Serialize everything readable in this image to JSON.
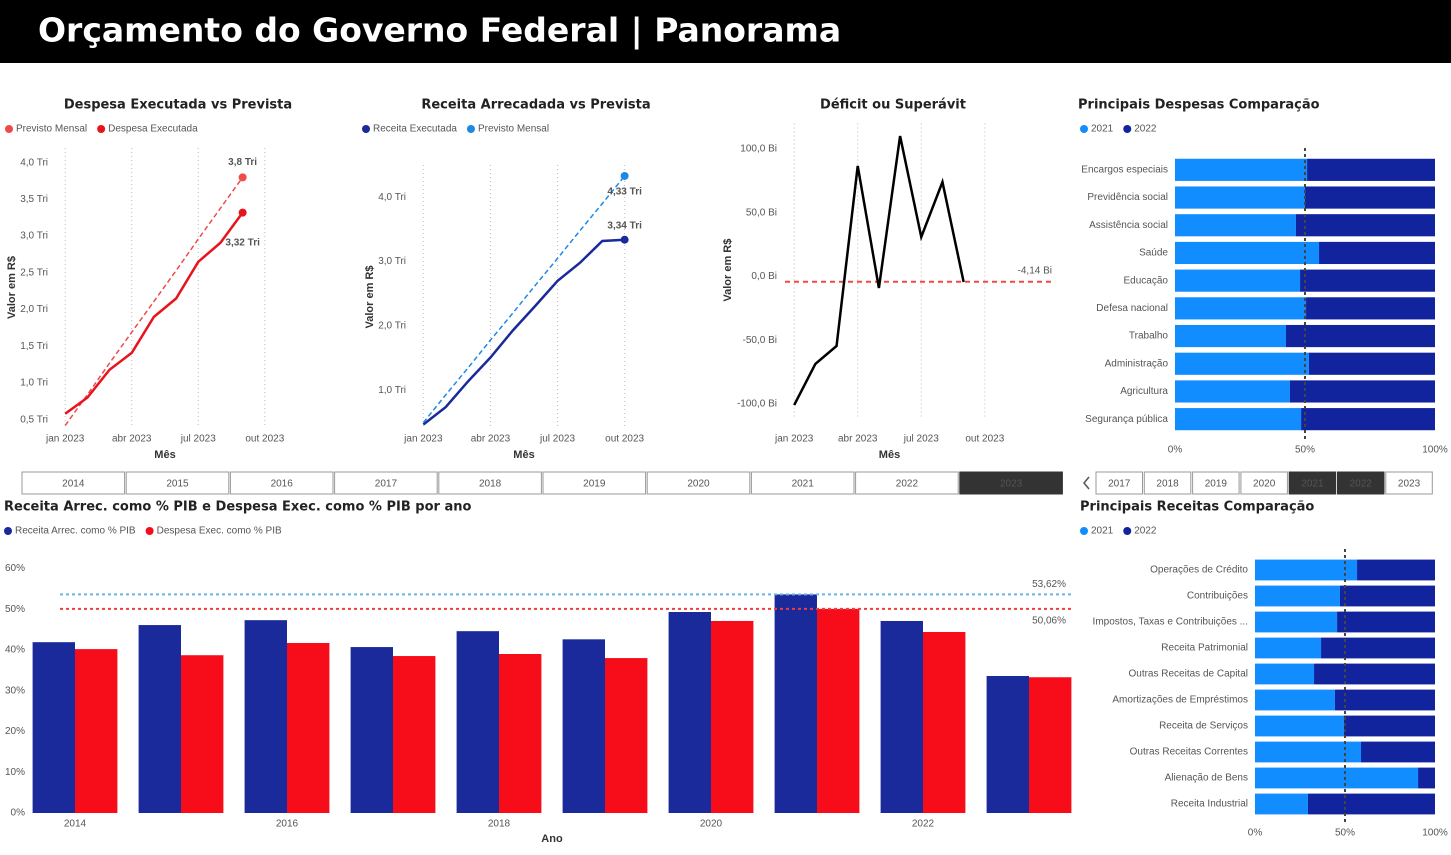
{
  "header": {
    "title": "Orçamento do Governo Federal | Panorama"
  },
  "chart_data": [
    {
      "type": "line",
      "title": "Despesa Executada vs Prevista",
      "x_label": "Mês",
      "y_label": "Valor em R$",
      "x": [
        "2023-01",
        "2023-02",
        "2023-03",
        "2023-04",
        "2023-05",
        "2023-06",
        "2023-07",
        "2023-08",
        "2023-09"
      ],
      "series": [
        {
          "name": "Previsto Mensal",
          "color": "#ee4b4b",
          "dashed": true,
          "values": [
            0.42,
            0.84,
            1.27,
            1.69,
            2.11,
            2.53,
            2.96,
            3.38,
            3.8
          ],
          "value_labels": [
            null,
            null,
            null,
            null,
            null,
            null,
            null,
            null,
            "3,8 Tri"
          ]
        },
        {
          "name": "Despesa Executada",
          "color": "#e8141c",
          "values": [
            0.58,
            0.8,
            1.18,
            1.41,
            1.9,
            2.15,
            2.65,
            2.91,
            3.32
          ],
          "value_labels": [
            null,
            null,
            null,
            null,
            null,
            null,
            null,
            null,
            "3,32 Tri"
          ]
        }
      ],
      "xlim": [
        "2022-12",
        "2023-11"
      ],
      "xticks": [
        {
          "value": "2023-01",
          "label": "jan 2023"
        },
        {
          "value": "2023-04",
          "label": "abr 2023"
        },
        {
          "value": "2023-07",
          "label": "jul 2023"
        },
        {
          "value": "2023-10",
          "label": "out 2023"
        }
      ],
      "ylim": [
        0.4,
        4.2
      ],
      "yticks": [
        {
          "value": 0.5,
          "label": "0,5 Tri"
        },
        {
          "value": 1.0,
          "label": "1,0 Tri"
        },
        {
          "value": 1.5,
          "label": "1,5 Tri"
        },
        {
          "value": 2.0,
          "label": "2,0 Tri"
        },
        {
          "value": 2.5,
          "label": "2,5 Tri"
        },
        {
          "value": 3.0,
          "label": "3,0 Tri"
        },
        {
          "value": 3.5,
          "label": "3,5 Tri"
        },
        {
          "value": 4.0,
          "label": "4,0 Tri"
        }
      ],
      "grid": "x"
    },
    {
      "type": "line",
      "title": "Receita Arrecadada vs Prevista",
      "x_label": "Mês",
      "y_label": "Valor em R$",
      "x": [
        "2023-01",
        "2023-02",
        "2023-03",
        "2023-04",
        "2023-05",
        "2023-06",
        "2023-07",
        "2023-08",
        "2023-09",
        "2023-10"
      ],
      "series": [
        {
          "name": "Receita Executada",
          "color": "#1a2a9a",
          "values": [
            0.47,
            0.74,
            1.14,
            1.51,
            1.93,
            2.31,
            2.7,
            2.98,
            3.32,
            3.34
          ],
          "value_labels": [
            null,
            null,
            null,
            null,
            null,
            null,
            null,
            null,
            null,
            "3,34 Tri"
          ]
        },
        {
          "name": "Previsto Mensal",
          "color": "#1e88e5",
          "dashed": true,
          "values": [
            0.5,
            0.93,
            1.35,
            1.78,
            2.2,
            2.63,
            3.05,
            3.48,
            3.9,
            4.33
          ],
          "value_labels": [
            null,
            null,
            null,
            null,
            null,
            null,
            null,
            null,
            null,
            "4,33 Tri"
          ]
        }
      ],
      "xlim": [
        "2022-12",
        "2023-11"
      ],
      "xticks": [
        {
          "value": "2023-01",
          "label": "jan 2023"
        },
        {
          "value": "2023-04",
          "label": "abr 2023"
        },
        {
          "value": "2023-07",
          "label": "jul 2023"
        },
        {
          "value": "2023-10",
          "label": "out 2023"
        }
      ],
      "ylim": [
        0.4,
        4.5
      ],
      "yticks": [
        {
          "value": 1.0,
          "label": "1,0 Tri"
        },
        {
          "value": 2.0,
          "label": "2,0 Tri"
        },
        {
          "value": 3.0,
          "label": "3,0 Tri"
        },
        {
          "value": 4.0,
          "label": "4,0 Tri"
        }
      ],
      "grid": "x"
    },
    {
      "type": "line",
      "title": "Déficit ou Superávit",
      "x_label": "Mês",
      "y_label": "Valor em R$",
      "x": [
        "2023-01",
        "2023-02",
        "2023-03",
        "2023-04",
        "2023-05",
        "2023-06",
        "2023-07",
        "2023-08",
        "2023-09"
      ],
      "values": [
        -100.8,
        -68.6,
        -54.5,
        86.7,
        -9,
        110.2,
        31,
        74.1,
        -4.3
      ],
      "color": "#000000",
      "reference_lines": [
        {
          "value": -4.14,
          "label": "-4,14 Bi",
          "color": "#f04848"
        }
      ],
      "xlim": [
        "2022-12",
        "2023-11"
      ],
      "xticks": [
        {
          "value": "2023-01",
          "label": "jan 2023"
        },
        {
          "value": "2023-04",
          "label": "abr 2023"
        },
        {
          "value": "2023-07",
          "label": "jul 2023"
        },
        {
          "value": "2023-10",
          "label": "out 2023"
        }
      ],
      "ylim": [
        -110,
        120
      ],
      "yticks": [
        {
          "value": -100,
          "label": "-100,0 Bi"
        },
        {
          "value": -50,
          "label": "-50,0 Bi"
        },
        {
          "value": 0,
          "label": "0,0 Bi"
        },
        {
          "value": 50,
          "label": "50,0 Bi"
        },
        {
          "value": 100,
          "label": "100,0 Bi"
        }
      ],
      "grid": "x"
    },
    {
      "type": "hbar",
      "title": "Principais Despesas Comparação",
      "categories": [
        "Encargos especiais",
        "Previdência social",
        "Assistência social",
        "Saúde",
        "Educação",
        "Defesa nacional",
        "Trabalho",
        "Administração",
        "Agricultura",
        "Segurança pública"
      ],
      "series": [
        {
          "name": "2021",
          "color": "#118dff",
          "values": [
            50.8,
            50,
            46.5,
            55.4,
            48.1,
            50.4,
            42.7,
            51.5,
            44.2,
            48.5
          ]
        },
        {
          "name": "2022",
          "color": "#12239e",
          "values": [
            49.2,
            50,
            53.5,
            44.6,
            51.9,
            49.6,
            57.3,
            48.5,
            55.8,
            51.5
          ]
        }
      ],
      "xlim": [
        0,
        100
      ],
      "xticks": [
        {
          "value": 0,
          "label": "0%"
        },
        {
          "value": 50,
          "label": "50%"
        },
        {
          "value": 100,
          "label": "100%"
        }
      ],
      "reference_line": 50
    },
    {
      "type": "hbar",
      "title": "Principais Receitas Comparação",
      "categories": [
        "Operações de Crédito",
        "Contribuições",
        "Impostos, Taxas e Contribuições ...",
        "Receita Patrimonial",
        "Outras Receitas de Capital",
        "Amortizações de Empréstimos",
        "Receita de Serviços",
        "Outras Receitas Correntes",
        "Alienação de Bens",
        "Receita Industrial"
      ],
      "series": [
        {
          "name": "2021",
          "color": "#118dff",
          "values": [
            56.7,
            47.2,
            45.6,
            36.7,
            32.8,
            44.4,
            49.4,
            58.9,
            90.6,
            29.4
          ]
        },
        {
          "name": "2022",
          "color": "#12239e",
          "values": [
            43.3,
            52.8,
            54.4,
            63.3,
            67.2,
            55.6,
            50.6,
            41.1,
            9.4,
            70.6
          ]
        }
      ],
      "xlim": [
        0,
        100
      ],
      "xticks": [
        {
          "value": 0,
          "label": "0%"
        },
        {
          "value": 50,
          "label": "50%"
        },
        {
          "value": 100,
          "label": "100%"
        }
      ],
      "reference_line": 50
    },
    {
      "type": "bar",
      "title": "Receita Arrec. como % PIB e Despesa Exec. como % PIB por ano",
      "x_label": "Ano",
      "x": [
        2014,
        2015,
        2016,
        2017,
        2018,
        2019,
        2020,
        2021,
        2022,
        2023
      ],
      "series": [
        {
          "name": "Receita Arrec. como % PIB",
          "color": "#1a2a9a",
          "values": [
            41.9,
            46.1,
            47.3,
            40.7,
            44.6,
            42.6,
            49.3,
            53.62,
            47.1,
            33.6
          ]
        },
        {
          "name": "Despesa Exec. como % PIB",
          "color": "#f70d1a",
          "values": [
            40.2,
            38.7,
            41.7,
            38.5,
            39.0,
            38.0,
            47.1,
            50.06,
            44.4,
            33.3
          ]
        }
      ],
      "reference_lines": [
        {
          "value": 53.62,
          "label": "53,62%",
          "color": "#6ab4e8"
        },
        {
          "value": 50.06,
          "label": "50,06%",
          "color": "#f03c3c"
        }
      ],
      "xlim": [
        2013.5,
        2023.5
      ],
      "xticks": [
        2014,
        2016,
        2018,
        2020,
        2022
      ],
      "ylim": [
        0,
        65
      ],
      "yticks": [
        {
          "value": 0,
          "label": "0%"
        },
        {
          "value": 10,
          "label": "10%"
        },
        {
          "value": 20,
          "label": "20%"
        },
        {
          "value": 30,
          "label": "30%"
        },
        {
          "value": 40,
          "label": "40%"
        },
        {
          "value": 50,
          "label": "50%"
        },
        {
          "value": 60,
          "label": "60%"
        }
      ]
    }
  ],
  "slicers": [
    {
      "items": [
        "2014",
        "2015",
        "2016",
        "2017",
        "2018",
        "2019",
        "2020",
        "2021",
        "2022",
        "2023"
      ],
      "selected": [
        "2023"
      ]
    },
    {
      "items": [
        "2017",
        "2018",
        "2019",
        "2020",
        "2021",
        "2022",
        "2023"
      ],
      "selected": [
        "2021",
        "2022"
      ]
    }
  ]
}
